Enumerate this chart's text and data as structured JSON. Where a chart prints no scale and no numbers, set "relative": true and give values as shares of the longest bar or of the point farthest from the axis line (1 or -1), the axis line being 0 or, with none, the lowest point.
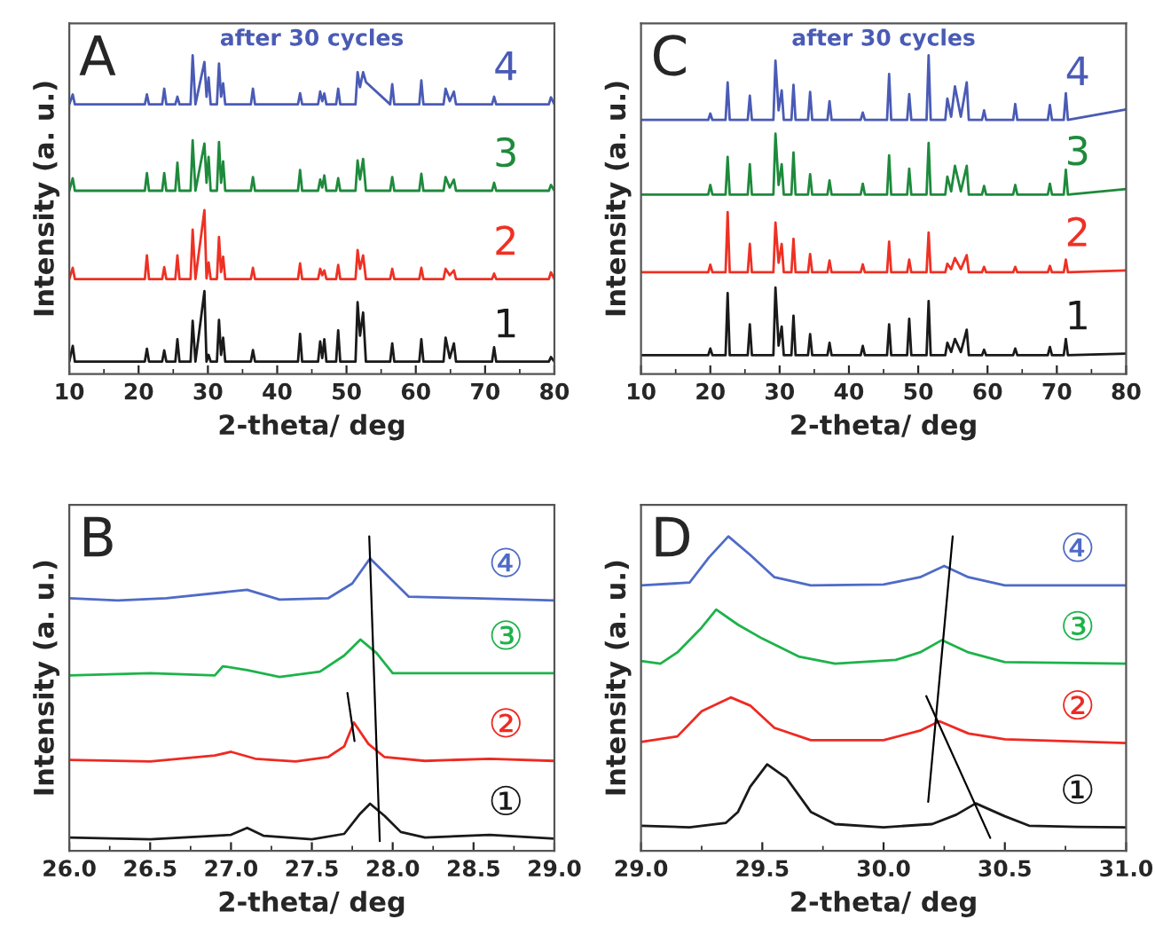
{
  "chart_data": [
    {
      "type": "line",
      "relative": true,
      "xlabel": "2-theta/ deg",
      "ylabel": "Intensity (a. u.)",
      "annotations": [
        "A",
        "after 30 cycles"
      ],
      "xlim": [
        10,
        80
      ],
      "xticks": [
        10,
        20,
        30,
        40,
        50,
        60,
        70,
        80
      ],
      "tick_labels": "x",
      "x": [
        10,
        10.5,
        10.8,
        20.9,
        21.2,
        21.5,
        23.4,
        23.7,
        24,
        25.3,
        25.6,
        25.9,
        27.5,
        27.8,
        28.2,
        29.5,
        29.8,
        30.1,
        30.4,
        31.3,
        31.6,
        31.9,
        32.2,
        32.5,
        36.2,
        36.5,
        36.8,
        43,
        43.3,
        43.6,
        45.9,
        46.2,
        46.5,
        46.8,
        47.1,
        48.5,
        48.8,
        49.1,
        51.3,
        51.6,
        51.95,
        52.4,
        52.8,
        56.3,
        56.6,
        56.9,
        60.5,
        60.8,
        61.1,
        64,
        64.3,
        64.9,
        65.5,
        65.8,
        71,
        71.3,
        71.6,
        79.2,
        79.5,
        80
      ],
      "series": [
        {
          "name": "1",
          "color": "#1a1a1a",
          "values": [
            0.039,
            0.088,
            0.039,
            0.039,
            0.079,
            0.039,
            0.039,
            0.074,
            0.039,
            0.039,
            0.109,
            0.039,
            0.039,
            0.167,
            0.039,
            0.26,
            0.039,
            0.06,
            0.039,
            0.039,
            0.17,
            0.06,
            0.114,
            0.039,
            0.039,
            0.075,
            0.039,
            0.039,
            0.126,
            0.039,
            0.039,
            0.102,
            0.05,
            0.109,
            0.039,
            0.039,
            0.137,
            0.039,
            0.039,
            0.225,
            0.12,
            0.193,
            0.039,
            0.039,
            0.096,
            0.039,
            0.039,
            0.109,
            0.039,
            0.039,
            0.114,
            0.05,
            0.096,
            0.039,
            0.039,
            0.084,
            0.039,
            0.039,
            0.053,
            0.039
          ]
        },
        {
          "name": "2",
          "color": "#ee3124",
          "values": [
            0.298,
            0.333,
            0.298,
            0.298,
            0.372,
            0.298,
            0.298,
            0.335,
            0.298,
            0.298,
            0.372,
            0.298,
            0.298,
            0.453,
            0.298,
            0.514,
            0.3,
            0.35,
            0.298,
            0.298,
            0.43,
            0.32,
            0.368,
            0.298,
            0.298,
            0.333,
            0.298,
            0.298,
            0.347,
            0.298,
            0.298,
            0.33,
            0.31,
            0.325,
            0.298,
            0.298,
            0.342,
            0.298,
            0.298,
            0.389,
            0.33,
            0.372,
            0.298,
            0.298,
            0.33,
            0.298,
            0.298,
            0.333,
            0.298,
            0.298,
            0.33,
            0.31,
            0.325,
            0.298,
            0.298,
            0.315,
            0.298,
            0.298,
            0.319,
            0.298
          ]
        },
        {
          "name": "3",
          "color": "#1e8a3c",
          "values": [
            0.575,
            0.614,
            0.575,
            0.575,
            0.63,
            0.575,
            0.575,
            0.63,
            0.575,
            0.575,
            0.663,
            0.575,
            0.575,
            0.733,
            0.575,
            0.723,
            0.6,
            0.681,
            0.575,
            0.575,
            0.728,
            0.6,
            0.667,
            0.575,
            0.575,
            0.618,
            0.575,
            0.575,
            0.64,
            0.575,
            0.575,
            0.61,
            0.585,
            0.623,
            0.575,
            0.575,
            0.614,
            0.575,
            0.575,
            0.67,
            0.61,
            0.675,
            0.575,
            0.575,
            0.618,
            0.575,
            0.575,
            0.628,
            0.575,
            0.575,
            0.618,
            0.585,
            0.61,
            0.575,
            0.575,
            0.6,
            0.575,
            0.575,
            0.593,
            0.575
          ]
        },
        {
          "name": "4",
          "color": "#4a5bb5",
          "values": [
            0.846,
            0.877,
            0.846,
            0.846,
            0.877,
            0.846,
            0.846,
            0.895,
            0.846,
            0.846,
            0.87,
            0.846,
            0.846,
            1.0,
            0.846,
            0.979,
            0.87,
            0.93,
            0.846,
            0.846,
            0.974,
            0.87,
            0.912,
            0.846,
            0.846,
            0.895,
            0.846,
            0.846,
            0.881,
            0.846,
            0.846,
            0.886,
            0.856,
            0.88,
            0.846,
            0.846,
            0.895,
            0.846,
            0.846,
            0.947,
            0.9,
            0.947,
            0.916,
            0.846,
            0.909,
            0.846,
            0.846,
            0.921,
            0.846,
            0.846,
            0.895,
            0.856,
            0.886,
            0.846,
            0.846,
            0.87,
            0.846,
            0.846,
            0.868,
            0.846
          ]
        }
      ]
    },
    {
      "type": "line",
      "relative": true,
      "xlabel": "2-theta/ deg",
      "ylabel": "Intensity (a. u.)",
      "annotations": [
        "C",
        "after 30 cycles"
      ],
      "xlim": [
        10,
        80
      ],
      "xticks": [
        10,
        20,
        30,
        40,
        50,
        60,
        70,
        80
      ],
      "tick_labels": "x",
      "x": [
        10,
        19.7,
        20,
        20.3,
        22.2,
        22.5,
        22.8,
        25.4,
        25.7,
        26,
        29.1,
        29.4,
        29.85,
        30.3,
        30.6,
        31.7,
        32,
        32.3,
        34.1,
        34.4,
        34.7,
        36.9,
        37.2,
        37.5,
        41.7,
        42,
        42.3,
        45.5,
        45.8,
        46.1,
        48.4,
        48.7,
        49,
        51.2,
        51.5,
        51.8,
        53.9,
        54.2,
        54.75,
        55.3,
        56.15,
        57,
        57.3,
        59.2,
        59.5,
        59.8,
        63.7,
        64,
        64.3,
        68.7,
        69,
        69.3,
        71,
        71.3,
        71.6,
        80
      ],
      "series": [
        {
          "name": "1",
          "color": "#1a1a1a",
          "values": [
            0.059,
            0.059,
            0.08,
            0.059,
            0.059,
            0.254,
            0.059,
            0.059,
            0.156,
            0.059,
            0.059,
            0.271,
            0.089,
            0.149,
            0.059,
            0.059,
            0.183,
            0.059,
            0.059,
            0.125,
            0.059,
            0.059,
            0.098,
            0.059,
            0.059,
            0.088,
            0.059,
            0.059,
            0.156,
            0.059,
            0.059,
            0.173,
            0.059,
            0.059,
            0.229,
            0.059,
            0.059,
            0.098,
            0.069,
            0.11,
            0.069,
            0.139,
            0.059,
            0.059,
            0.076,
            0.059,
            0.059,
            0.08,
            0.059,
            0.059,
            0.085,
            0.059,
            0.059,
            0.11,
            0.059,
            0.064
          ]
        },
        {
          "name": "2",
          "color": "#ee3124",
          "values": [
            0.319,
            0.319,
            0.343,
            0.319,
            0.319,
            0.508,
            0.319,
            0.319,
            0.408,
            0.319,
            0.319,
            0.475,
            0.349,
            0.408,
            0.319,
            0.319,
            0.424,
            0.319,
            0.319,
            0.376,
            0.319,
            0.319,
            0.356,
            0.319,
            0.319,
            0.344,
            0.319,
            0.319,
            0.415,
            0.319,
            0.319,
            0.359,
            0.319,
            0.319,
            0.444,
            0.319,
            0.319,
            0.346,
            0.329,
            0.364,
            0.329,
            0.373,
            0.319,
            0.319,
            0.336,
            0.319,
            0.319,
            0.336,
            0.319,
            0.319,
            0.339,
            0.319,
            0.319,
            0.359,
            0.319,
            0.325
          ]
        },
        {
          "name": "3",
          "color": "#1e8a3c",
          "values": [
            0.563,
            0.563,
            0.593,
            0.563,
            0.563,
            0.681,
            0.563,
            0.563,
            0.658,
            0.563,
            0.563,
            0.754,
            0.593,
            0.658,
            0.563,
            0.563,
            0.695,
            0.563,
            0.563,
            0.627,
            0.563,
            0.563,
            0.607,
            0.563,
            0.563,
            0.597,
            0.563,
            0.563,
            0.686,
            0.563,
            0.563,
            0.644,
            0.563,
            0.563,
            0.725,
            0.563,
            0.563,
            0.619,
            0.573,
            0.653,
            0.573,
            0.653,
            0.563,
            0.563,
            0.59,
            0.563,
            0.563,
            0.593,
            0.563,
            0.563,
            0.597,
            0.563,
            0.563,
            0.641,
            0.563,
            0.58
          ]
        },
        {
          "name": "4",
          "color": "#4a5bb5",
          "values": [
            0.797,
            0.797,
            0.817,
            0.797,
            0.797,
            0.915,
            0.797,
            0.797,
            0.873,
            0.797,
            0.797,
            0.983,
            0.827,
            0.89,
            0.797,
            0.797,
            0.907,
            0.797,
            0.797,
            0.885,
            0.797,
            0.797,
            0.856,
            0.797,
            0.797,
            0.82,
            0.797,
            0.797,
            0.941,
            0.797,
            0.797,
            0.878,
            0.797,
            0.797,
            1.0,
            0.797,
            0.797,
            0.864,
            0.807,
            0.902,
            0.807,
            0.915,
            0.797,
            0.797,
            0.827,
            0.797,
            0.797,
            0.847,
            0.797,
            0.797,
            0.844,
            0.797,
            0.797,
            0.881,
            0.797,
            0.83
          ]
        }
      ]
    },
    {
      "type": "line",
      "relative": true,
      "xlabel": "2-theta/ deg",
      "ylabel": "Intensity (a. u.)",
      "annotations": [
        "B"
      ],
      "xlim": [
        26,
        29
      ],
      "xticks": [
        {
          "value": 26,
          "label": "26.0"
        },
        26.5,
        {
          "value": 27,
          "label": "27.0"
        },
        27.5,
        {
          "value": 28,
          "label": "28.0"
        },
        28.5,
        {
          "value": 29,
          "label": "29.0"
        }
      ],
      "tick_labels": "x",
      "series": [
        {
          "name": "①",
          "color": "#1a1a1a",
          "x": [
            26,
            26.5,
            27,
            27.1,
            27.2,
            27.5,
            27.7,
            27.8,
            27.86,
            27.95,
            28.05,
            28.2,
            28.6,
            29
          ],
          "values": [
            0.0425,
            0.037,
            0.051,
            0.073,
            0.048,
            0.037,
            0.054,
            0.119,
            0.15,
            0.111,
            0.06,
            0.0425,
            0.051,
            0.039
          ]
        },
        {
          "name": "②",
          "color": "#ee2a22",
          "x": [
            26,
            26.5,
            26.9,
            27,
            27.15,
            27.4,
            27.6,
            27.7,
            27.76,
            27.85,
            27.95,
            28.2,
            28.6,
            29
          ],
          "values": [
            0.289,
            0.284,
            0.303,
            0.315,
            0.293,
            0.284,
            0.298,
            0.332,
            0.408,
            0.34,
            0.298,
            0.286,
            0.293,
            0.286
          ]
        },
        {
          "name": "③",
          "color": "#1db34a",
          "x": [
            26,
            26.5,
            26.9,
            26.95,
            27.1,
            27.3,
            27.55,
            27.7,
            27.8,
            27.9,
            28,
            28.4,
            29
          ],
          "values": [
            0.558,
            0.565,
            0.558,
            0.587,
            0.575,
            0.553,
            0.57,
            0.621,
            0.672,
            0.629,
            0.565,
            0.565,
            0.565
          ]
        },
        {
          "name": "④",
          "color": "#4f6bc7",
          "x": [
            26,
            26.3,
            26.6,
            27.1,
            27.3,
            27.6,
            27.75,
            27.86,
            27.95,
            28.1,
            28.5,
            29
          ],
          "values": [
            0.803,
            0.796,
            0.803,
            0.83,
            0.799,
            0.803,
            0.85,
            0.93,
            0.884,
            0.808,
            0.803,
            0.796
          ]
        },
        {
          "type": "line",
          "color": "#000000",
          "x": [
            27.855,
            27.92
          ],
          "values": [
            1.0,
            0.031
          ]
        },
        {
          "type": "line",
          "color": "#000000",
          "x": [
            27.72,
            27.764
          ],
          "values": [
            0.502,
            0.349
          ]
        }
      ]
    },
    {
      "type": "line",
      "relative": true,
      "xlabel": "2-theta/ deg",
      "ylabel": "Intensity (a. u.)",
      "annotations": [
        "D"
      ],
      "xlim": [
        29,
        31
      ],
      "xticks": [
        {
          "value": 29,
          "label": "29.0"
        },
        29.5,
        {
          "value": 30,
          "label": "30.0"
        },
        30.5,
        {
          "value": 31,
          "label": "31.0"
        }
      ],
      "tick_labels": "x",
      "series": [
        {
          "name": "①",
          "color": "#1a1a1a",
          "x": [
            29,
            29.2,
            29.35,
            29.4,
            29.45,
            29.52,
            29.6,
            29.7,
            29.8,
            30,
            30.2,
            30.3,
            30.38,
            30.5,
            30.6,
            30.8,
            31
          ],
          "values": [
            0.08,
            0.075,
            0.089,
            0.124,
            0.204,
            0.275,
            0.231,
            0.124,
            0.085,
            0.075,
            0.085,
            0.115,
            0.151,
            0.11,
            0.08,
            0.076,
            0.075
          ]
        },
        {
          "name": "②",
          "color": "#ee2a22",
          "x": [
            29,
            29.15,
            29.25,
            29.37,
            29.45,
            29.55,
            29.7,
            30,
            30.15,
            30.23,
            30.35,
            30.5,
            31
          ],
          "values": [
            0.346,
            0.364,
            0.444,
            0.488,
            0.462,
            0.391,
            0.352,
            0.352,
            0.382,
            0.412,
            0.373,
            0.355,
            0.343
          ]
        },
        {
          "name": "③",
          "color": "#1db34a",
          "x": [
            29,
            29.08,
            29.15,
            29.25,
            29.31,
            29.4,
            29.5,
            29.65,
            29.8,
            30.05,
            30.15,
            30.24,
            30.35,
            30.5,
            31
          ],
          "values": [
            0.604,
            0.595,
            0.631,
            0.71,
            0.767,
            0.719,
            0.675,
            0.618,
            0.595,
            0.607,
            0.631,
            0.67,
            0.631,
            0.6,
            0.595
          ]
        },
        {
          "name": "④",
          "color": "#4f6bc7",
          "x": [
            29,
            29.2,
            29.28,
            29.36,
            29.45,
            29.55,
            29.7,
            30,
            30.15,
            30.25,
            30.35,
            30.5,
            31
          ],
          "values": [
            0.844,
            0.853,
            0.933,
            1.0,
            0.941,
            0.87,
            0.844,
            0.847,
            0.87,
            0.906,
            0.87,
            0.844,
            0.844
          ]
        },
        {
          "type": "line",
          "color": "#000000",
          "x": [
            30.285,
            30.184
          ],
          "values": [
            1.0,
            0.156
          ]
        },
        {
          "type": "line",
          "color": "#000000",
          "x": [
            30.176,
            30.44
          ],
          "values": [
            0.492,
            0.041
          ]
        }
      ]
    }
  ]
}
